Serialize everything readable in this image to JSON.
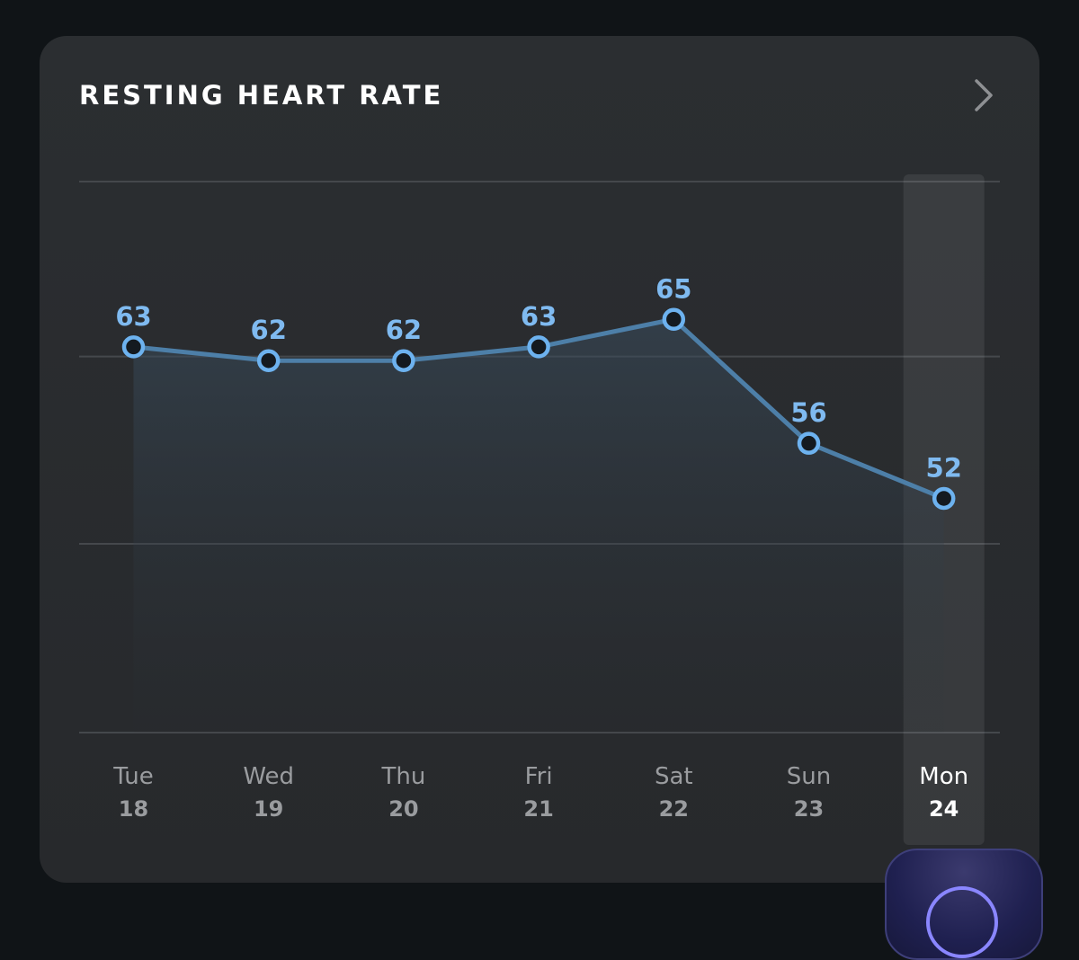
{
  "card": {
    "title": "RESTING HEART RATE"
  },
  "icons": {
    "next": "chevron-right-icon"
  },
  "colors": {
    "line": "#4d7fa8",
    "point": "#6db2ef",
    "label": "#7fbaf0",
    "day_label": "#9a9c9f",
    "selected_label": "#ffffff",
    "grid": "#45484c"
  },
  "chart_data": {
    "type": "line",
    "title": "RESTING HEART RATE",
    "categories": [
      "Tue 18",
      "Wed 19",
      "Thu 20",
      "Fri 21",
      "Sat 22",
      "Sun 23",
      "Mon 24"
    ],
    "days": [
      {
        "weekday": "Tue",
        "date": "18"
      },
      {
        "weekday": "Wed",
        "date": "19"
      },
      {
        "weekday": "Thu",
        "date": "20"
      },
      {
        "weekday": "Fri",
        "date": "21"
      },
      {
        "weekday": "Sat",
        "date": "22"
      },
      {
        "weekday": "Sun",
        "date": "23"
      },
      {
        "weekday": "Mon",
        "date": "24"
      }
    ],
    "series": [
      {
        "name": "Resting heart rate",
        "values": [
          63,
          62,
          62,
          63,
          65,
          56,
          52
        ]
      }
    ],
    "ylim": [
      35,
      75
    ],
    "gridlines": [
      35,
      48.7,
      62.3,
      75
    ],
    "selected_index": 6,
    "xlabel": "",
    "ylabel": ""
  }
}
